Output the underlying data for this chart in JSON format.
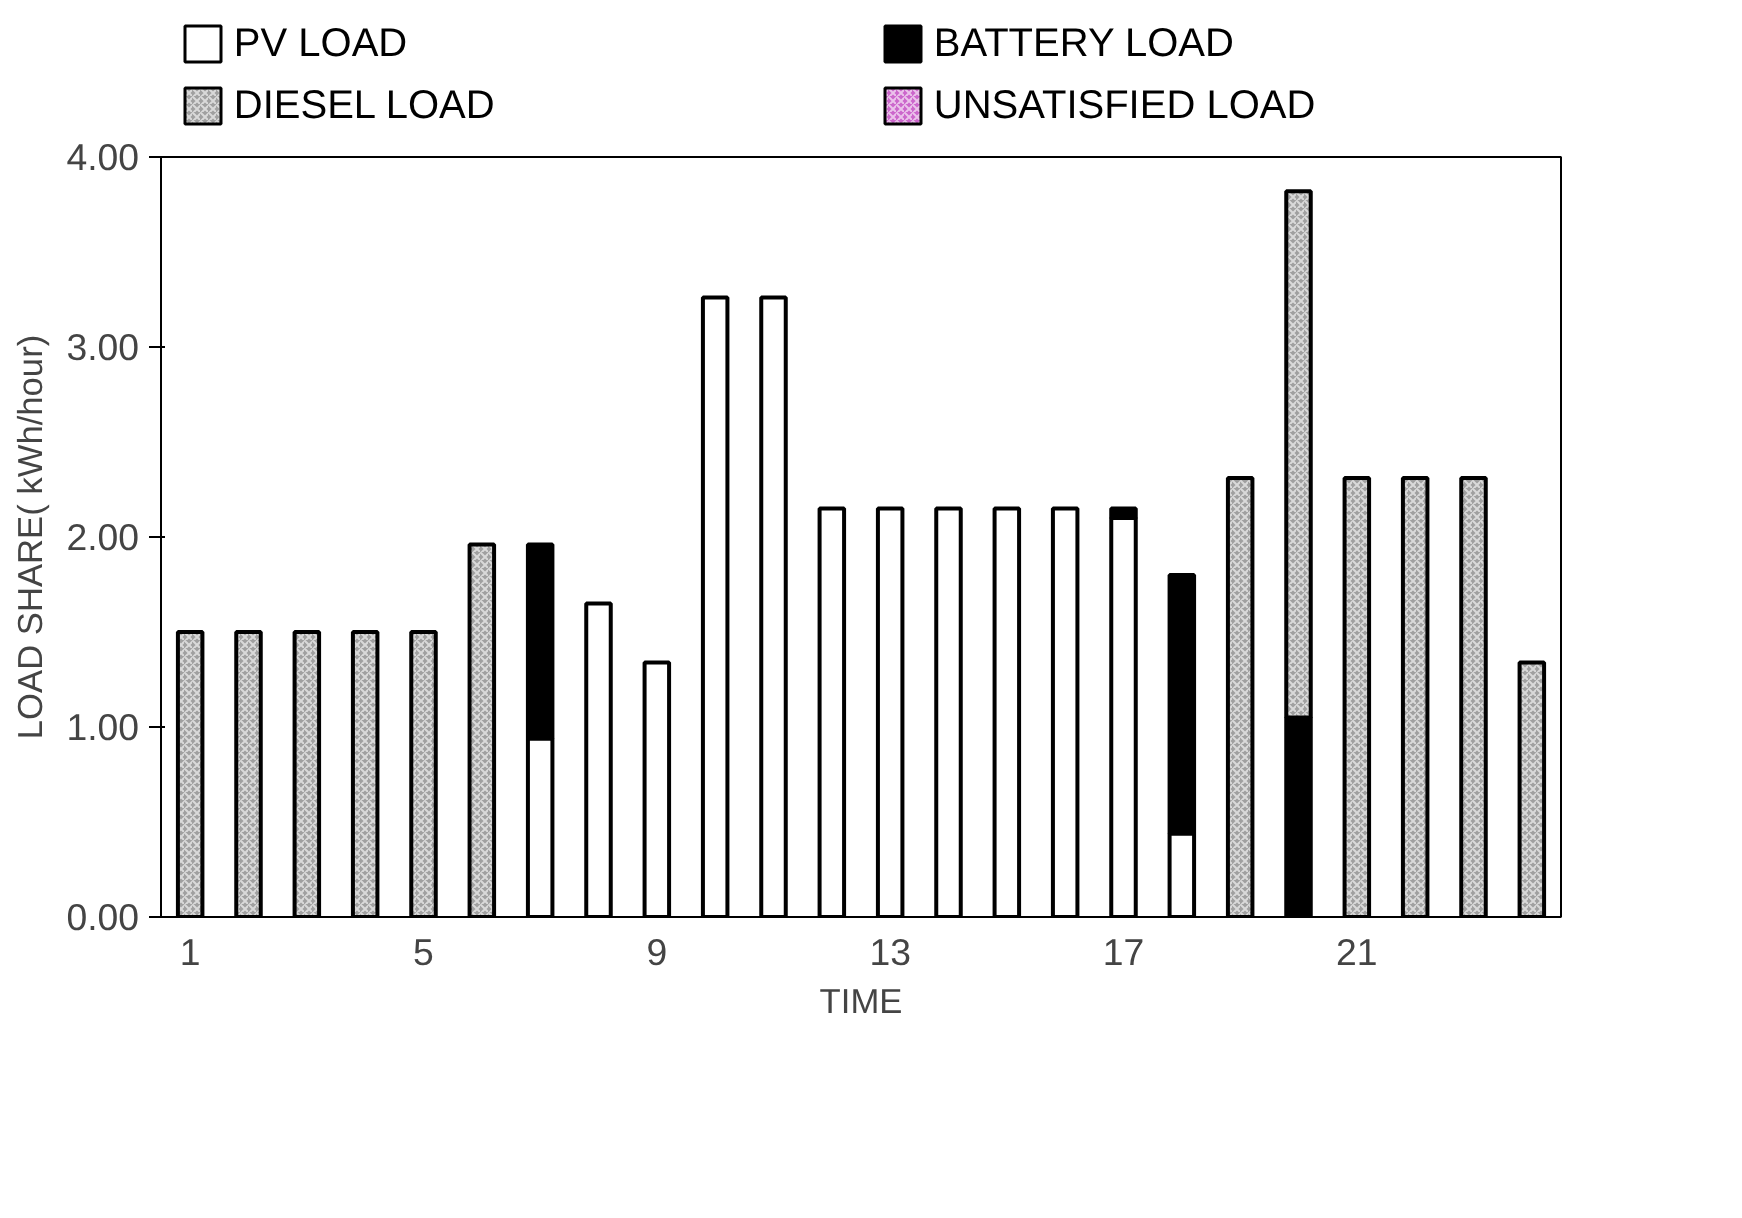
{
  "chart_data": {
    "type": "bar",
    "stacked": true,
    "xlabel": "TIME",
    "ylabel": "LOAD SHARE( kWh/hour)",
    "categories": [
      "1",
      null,
      null,
      null,
      "5",
      null,
      null,
      null,
      "9",
      null,
      null,
      null,
      "13",
      null,
      null,
      null,
      "17",
      null,
      null,
      null,
      "21",
      null,
      null,
      null
    ],
    "series": [
      {
        "name": "PV LOAD",
        "color": "#ffffff",
        "values": [
          null,
          null,
          null,
          null,
          null,
          null,
          0.94,
          1.65,
          1.34,
          3.26,
          3.26,
          2.15,
          2.15,
          2.15,
          2.15,
          2.15,
          2.1,
          0.44,
          null,
          null,
          null,
          null,
          null,
          null
        ]
      },
      {
        "name": "BATTERY LOAD",
        "color": "#000000",
        "values": [
          null,
          null,
          null,
          null,
          null,
          null,
          1.02,
          null,
          null,
          null,
          null,
          null,
          null,
          null,
          null,
          null,
          0.05,
          1.36,
          null,
          1.05,
          null,
          null,
          null,
          null
        ]
      },
      {
        "name": "DIESEL LOAD",
        "color": "#a0a0a0",
        "values": [
          1.5,
          1.5,
          1.5,
          1.5,
          1.5,
          1.96,
          null,
          null,
          null,
          null,
          null,
          null,
          null,
          null,
          null,
          null,
          null,
          null,
          2.31,
          2.77,
          2.31,
          2.31,
          2.31,
          1.34
        ]
      },
      {
        "name": "UNSATISFIED LOAD",
        "color": "#cc66cc",
        "values": [
          null,
          null,
          null,
          null,
          null,
          null,
          null,
          null,
          null,
          null,
          null,
          null,
          null,
          null,
          null,
          null,
          null,
          null,
          null,
          null,
          null,
          null,
          null,
          null
        ]
      }
    ],
    "ylim": [
      0,
      4
    ],
    "yticks": [
      {
        "value": 0,
        "label": "0.00"
      },
      {
        "value": 1,
        "label": "1.00"
      },
      {
        "value": 2,
        "label": "2.00"
      },
      {
        "value": 3,
        "label": "3.00"
      },
      {
        "value": 4,
        "label": "4.00"
      }
    ],
    "grid": false,
    "legend": "top"
  }
}
